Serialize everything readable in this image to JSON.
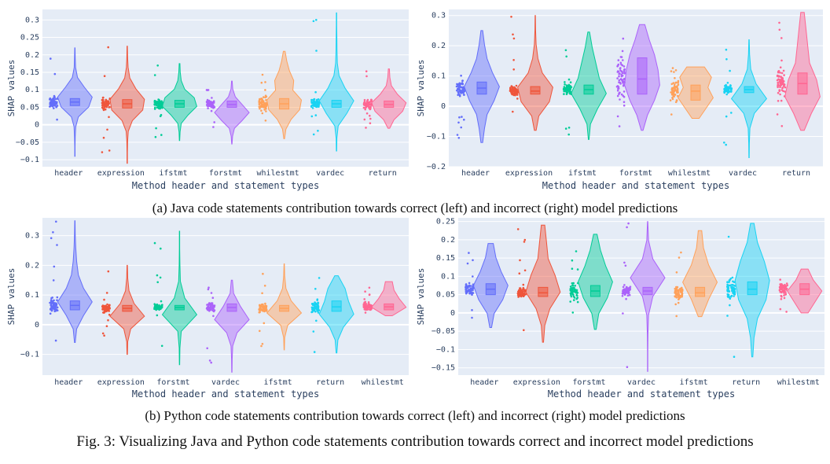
{
  "figure": {
    "caption_a": "(a) Java code statements contribution towards correct (left) and incorrect (right) model predictions",
    "caption_b": "(b) Python code statements contribution towards correct (left) and incorrect (right) model predictions",
    "caption_main": "Fig. 3: Visualizing Java and Python code statements contribution towards correct and incorrect model predictions"
  },
  "colors": {
    "plot_bg": "#e5ecf6",
    "grid": "#ffffff",
    "palette": [
      "#636efa",
      "#ef553b",
      "#00cc96",
      "#ab63fa",
      "#ffa15a",
      "#19d3f3",
      "#ff6692"
    ]
  },
  "chart_data": [
    {
      "type": "violin",
      "id": "java-correct",
      "xlabel": "Method header and statement types",
      "ylabel": "SHAP values",
      "ylim": [
        -0.12,
        0.33
      ],
      "yticks": [
        -0.1,
        -0.05,
        0,
        0.05,
        0.1,
        0.15,
        0.2,
        0.25,
        0.3
      ],
      "ytick_labels": [
        "−0.1",
        "−0.05",
        "0",
        "0.05",
        "0.1",
        "0.15",
        "0.2",
        "0.25",
        "0.3"
      ],
      "categories": [
        "header",
        "expression",
        "ifstmt",
        "forstmt",
        "whilestmt",
        "vardec",
        "return"
      ],
      "series": [
        {
          "category": "header",
          "min": -0.09,
          "max": 0.22,
          "q1": 0.055,
          "median": 0.065,
          "q3": 0.075,
          "density": [
            0.01,
            0.01,
            0.02,
            0.05,
            0.2,
            0.8,
            1.0,
            0.55,
            0.15,
            0.04,
            0.02,
            0.01
          ]
        },
        {
          "category": "expression",
          "min": -0.11,
          "max": 0.225,
          "q1": 0.048,
          "median": 0.06,
          "q3": 0.072,
          "density": [
            0.01,
            0.01,
            0.02,
            0.06,
            0.3,
            0.9,
            1.0,
            0.5,
            0.15,
            0.05,
            0.02,
            0.01
          ]
        },
        {
          "category": "ifstmt",
          "min": -0.045,
          "max": 0.175,
          "q1": 0.05,
          "median": 0.06,
          "q3": 0.07,
          "density": [
            0.01,
            0.03,
            0.1,
            0.5,
            1.0,
            0.85,
            0.3,
            0.1,
            0.04,
            0.02
          ]
        },
        {
          "category": "forstmt",
          "min": -0.055,
          "max": 0.125,
          "q1": 0.05,
          "median": 0.058,
          "q3": 0.068,
          "density": [
            0.01,
            0.04,
            0.15,
            0.6,
            1.0,
            0.6,
            0.2,
            0.05,
            0.02
          ]
        },
        {
          "category": "whilestmt",
          "min": -0.04,
          "max": 0.21,
          "q1": 0.045,
          "median": 0.06,
          "q3": 0.075,
          "density": [
            0.02,
            0.1,
            0.4,
            0.9,
            1.0,
            0.5,
            0.55,
            0.3,
            0.15,
            0.05
          ]
        },
        {
          "category": "vardec",
          "min": -0.075,
          "max": 0.32,
          "q1": 0.05,
          "median": 0.06,
          "q3": 0.07,
          "density": [
            0.01,
            0.02,
            0.1,
            0.6,
            1.0,
            0.5,
            0.15,
            0.05,
            0.03,
            0.02,
            0.01,
            0.01
          ]
        },
        {
          "category": "return",
          "min": -0.01,
          "max": 0.16,
          "q1": 0.05,
          "median": 0.058,
          "q3": 0.068,
          "density": [
            0.05,
            0.3,
            0.8,
            1.0,
            0.5,
            0.15,
            0.06,
            0.03
          ]
        }
      ]
    },
    {
      "type": "violin",
      "id": "java-incorrect",
      "xlabel": "Method header and statement types",
      "ylabel": "SHAP values",
      "ylim": [
        -0.2,
        0.32
      ],
      "yticks": [
        -0.2,
        -0.1,
        0,
        0.1,
        0.2,
        0.3
      ],
      "ytick_labels": [
        "−0.2",
        "−0.1",
        "0",
        "0.1",
        "0.2",
        "0.3"
      ],
      "categories": [
        "header",
        "expression",
        "ifstmt",
        "forstmt",
        "whilestmt",
        "vardec",
        "return"
      ],
      "series": [
        {
          "category": "header",
          "min": -0.12,
          "max": 0.25,
          "q1": 0.04,
          "median": 0.06,
          "q3": 0.08,
          "density": [
            0.05,
            0.15,
            0.3,
            0.7,
            1.0,
            0.6,
            0.3,
            0.15,
            0.05
          ]
        },
        {
          "category": "expression",
          "min": -0.08,
          "max": 0.3,
          "q1": 0.04,
          "median": 0.05,
          "q3": 0.065,
          "density": [
            0.05,
            0.2,
            0.8,
            1.0,
            0.4,
            0.15,
            0.05,
            0.02,
            0.01
          ]
        },
        {
          "category": "ifstmt",
          "min": -0.11,
          "max": 0.245,
          "q1": 0.04,
          "median": 0.055,
          "q3": 0.07,
          "density": [
            0.02,
            0.1,
            0.5,
            1.0,
            0.6,
            0.4,
            0.2,
            0.05
          ]
        },
        {
          "category": "forstmt",
          "min": -0.08,
          "max": 0.27,
          "q1": 0.04,
          "median": 0.09,
          "q3": 0.16,
          "density": [
            0.05,
            0.3,
            0.7,
            1.0,
            0.9,
            0.7,
            0.4,
            0.15
          ]
        },
        {
          "category": "whilestmt",
          "min": -0.04,
          "max": 0.13,
          "q1": 0.02,
          "median": 0.05,
          "q3": 0.07,
          "density": [
            0.2,
            0.6,
            1.0,
            0.7,
            0.9,
            0.5
          ]
        },
        {
          "category": "vardec",
          "min": -0.17,
          "max": 0.22,
          "q1": 0.045,
          "median": 0.055,
          "q3": 0.065,
          "density": [
            0.01,
            0.02,
            0.05,
            0.3,
            1.0,
            0.4,
            0.1,
            0.03,
            0.01
          ]
        },
        {
          "category": "return",
          "min": -0.08,
          "max": 0.31,
          "q1": 0.04,
          "median": 0.075,
          "q3": 0.11,
          "density": [
            0.1,
            0.5,
            1.0,
            0.8,
            0.4,
            0.3,
            0.2,
            0.1
          ]
        }
      ]
    },
    {
      "type": "violin",
      "id": "python-correct",
      "xlabel": "Method header and statement types",
      "ylabel": "SHAP values",
      "ylim": [
        -0.17,
        0.36
      ],
      "yticks": [
        -0.1,
        0,
        0.1,
        0.2,
        0.3
      ],
      "ytick_labels": [
        "−0.1",
        "0",
        "0.1",
        "0.2",
        "0.3"
      ],
      "categories": [
        "header",
        "expression",
        "forstmt",
        "vardec",
        "ifstmt",
        "return",
        "whilestmt"
      ],
      "series": [
        {
          "category": "header",
          "min": -0.06,
          "max": 0.35,
          "q1": 0.05,
          "median": 0.065,
          "q3": 0.08,
          "density": [
            0.02,
            0.1,
            0.5,
            1.0,
            0.5,
            0.2,
            0.1,
            0.05,
            0.02,
            0.01
          ]
        },
        {
          "category": "expression",
          "min": -0.1,
          "max": 0.2,
          "q1": 0.045,
          "median": 0.055,
          "q3": 0.065,
          "density": [
            0.01,
            0.03,
            0.2,
            1.0,
            0.4,
            0.1,
            0.03,
            0.01
          ]
        },
        {
          "category": "forstmt",
          "min": -0.135,
          "max": 0.315,
          "q1": 0.05,
          "median": 0.058,
          "q3": 0.065,
          "density": [
            0.01,
            0.02,
            0.1,
            1.0,
            0.3,
            0.05,
            0.02,
            0.01,
            0.01
          ]
        },
        {
          "category": "vardec",
          "min": -0.16,
          "max": 0.15,
          "q1": 0.045,
          "median": 0.058,
          "q3": 0.07,
          "density": [
            0.01,
            0.02,
            0.05,
            0.3,
            1.0,
            0.5,
            0.1,
            0.03
          ]
        },
        {
          "category": "ifstmt",
          "min": -0.085,
          "max": 0.205,
          "q1": 0.045,
          "median": 0.055,
          "q3": 0.065,
          "density": [
            0.01,
            0.03,
            0.2,
            1.0,
            0.4,
            0.1,
            0.03,
            0.01
          ]
        },
        {
          "category": "return",
          "min": -0.095,
          "max": 0.165,
          "q1": 0.045,
          "median": 0.06,
          "q3": 0.08,
          "density": [
            0.02,
            0.08,
            0.4,
            1.0,
            0.7,
            0.5,
            0.1
          ]
        },
        {
          "category": "whilestmt",
          "min": 0.03,
          "max": 0.145,
          "q1": 0.05,
          "median": 0.06,
          "q3": 0.07,
          "density": [
            0.2,
            1.0,
            0.6,
            0.3,
            0.2
          ]
        }
      ]
    },
    {
      "type": "violin",
      "id": "python-incorrect",
      "xlabel": "Method header and statement types",
      "ylabel": "SHAP values",
      "ylim": [
        -0.17,
        0.26
      ],
      "yticks": [
        -0.15,
        -0.1,
        -0.05,
        0,
        0.05,
        0.1,
        0.15,
        0.2,
        0.25
      ],
      "ytick_labels": [
        "−0.15",
        "−0.1",
        "−0.05",
        "0",
        "0.05",
        "0.1",
        "0.15",
        "0.2",
        "0.25"
      ],
      "categories": [
        "header",
        "expression",
        "forstmt",
        "vardec",
        "ifstmt",
        "return",
        "whilestmt"
      ],
      "series": [
        {
          "category": "header",
          "min": -0.04,
          "max": 0.19,
          "q1": 0.05,
          "median": 0.065,
          "q3": 0.08,
          "density": [
            0.05,
            0.2,
            0.7,
            1.0,
            0.6,
            0.3,
            0.15
          ]
        },
        {
          "category": "expression",
          "min": -0.08,
          "max": 0.24,
          "q1": 0.045,
          "median": 0.055,
          "q3": 0.07,
          "density": [
            0.03,
            0.1,
            0.4,
            1.0,
            0.7,
            0.3,
            0.2,
            0.1
          ]
        },
        {
          "category": "forstmt",
          "min": -0.045,
          "max": 0.215,
          "q1": 0.045,
          "median": 0.06,
          "q3": 0.075,
          "density": [
            0.05,
            0.2,
            0.7,
            1.0,
            0.6,
            0.3,
            0.1
          ]
        },
        {
          "category": "vardec",
          "min": -0.16,
          "max": 0.25,
          "q1": 0.05,
          "median": 0.06,
          "q3": 0.07,
          "density": [
            0.01,
            0.01,
            0.02,
            0.05,
            0.3,
            1.0,
            0.3,
            0.05,
            0.01
          ]
        },
        {
          "category": "ifstmt",
          "min": -0.01,
          "max": 0.225,
          "q1": 0.045,
          "median": 0.055,
          "q3": 0.07,
          "density": [
            0.1,
            0.5,
            1.0,
            0.5,
            0.2,
            0.1
          ]
        },
        {
          "category": "return",
          "min": -0.12,
          "max": 0.245,
          "q1": 0.05,
          "median": 0.065,
          "q3": 0.085,
          "density": [
            0.03,
            0.1,
            0.3,
            0.8,
            1.0,
            0.7,
            0.3,
            0.1
          ]
        },
        {
          "category": "whilestmt",
          "min": 0.0,
          "max": 0.12,
          "q1": 0.05,
          "median": 0.065,
          "q3": 0.08,
          "density": [
            0.2,
            0.6,
            1.0,
            0.5,
            0.2
          ]
        }
      ]
    }
  ]
}
